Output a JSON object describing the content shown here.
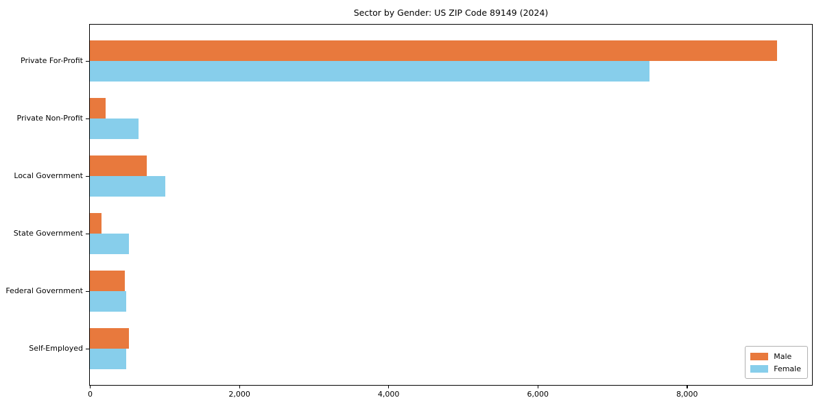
{
  "chart_data": {
    "type": "bar",
    "orientation": "horizontal",
    "title": "Sector by Gender: US ZIP Code 89149 (2024)",
    "categories": [
      "Private For-Profit",
      "Private Non-Profit",
      "Local Government",
      "State Government",
      "Federal Government",
      "Self-Employed"
    ],
    "series": [
      {
        "name": "Male",
        "color": "#E8793D",
        "values": [
          9210,
          215,
          760,
          155,
          470,
          520
        ]
      },
      {
        "name": "Female",
        "color": "#87CEEB",
        "values": [
          7500,
          650,
          1015,
          520,
          485,
          485
        ]
      }
    ],
    "xlabel": "",
    "ylabel": "",
    "xlim": [
      0,
      9670
    ],
    "xticks": [
      0,
      2000,
      4000,
      6000,
      8000
    ],
    "xtick_labels": [
      "0",
      "2,000",
      "4,000",
      "6,000",
      "8,000"
    ],
    "grid": false,
    "legend": {
      "position": "lower right",
      "entries": [
        "Male",
        "Female"
      ]
    }
  }
}
